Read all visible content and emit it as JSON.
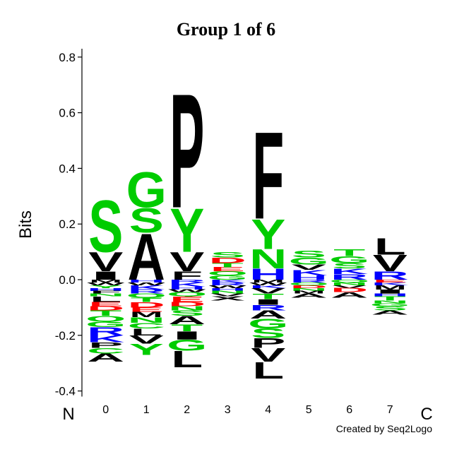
{
  "chart_data": {
    "type": "sequence-logo",
    "title": "Group 1 of 6",
    "ylabel": "Bits",
    "ylim": [
      -0.42,
      0.83
    ],
    "yticks": [
      -0.4,
      -0.2,
      0.0,
      0.2,
      0.4,
      0.6,
      0.8
    ],
    "ytick_labels": [
      "-0.4",
      "-0.2",
      "0.0",
      "0.2",
      "0.4",
      "0.6",
      "0.8"
    ],
    "positions": [
      "0",
      "1",
      "2",
      "3",
      "4",
      "5",
      "6",
      "7"
    ],
    "n_terminus_label": "N",
    "c_terminus_label": "C",
    "credit": "Created by Seq2Logo",
    "colors": {
      "polar": "#00cc00",
      "hydrophobic": "#000000",
      "basic": "#0000ff",
      "acidic": "#ff0000"
    },
    "letter_colors": {
      "A": "#000000",
      "C": "#00cc00",
      "D": "#ff0000",
      "E": "#ff0000",
      "F": "#000000",
      "G": "#00cc00",
      "H": "#0000ff",
      "I": "#000000",
      "K": "#0000ff",
      "L": "#000000",
      "M": "#000000",
      "N": "#00cc00",
      "P": "#000000",
      "Q": "#00cc00",
      "R": "#0000ff",
      "S": "#00cc00",
      "T": "#00cc00",
      "V": "#000000",
      "W": "#000000",
      "Y": "#00cc00"
    },
    "columns": [
      {
        "position": "0",
        "positive": [
          [
            "I",
            0.03
          ],
          [
            "V",
            0.07
          ],
          [
            "S",
            0.19
          ]
        ],
        "negative": [
          [
            "M",
            0.01
          ],
          [
            "W",
            0.01
          ],
          [
            "Y",
            0.01
          ],
          [
            "H",
            0.01
          ],
          [
            "F",
            0.01
          ],
          [
            "N",
            0.01
          ],
          [
            "L",
            0.02
          ],
          [
            "E",
            0.015
          ],
          [
            "D",
            0.015
          ],
          [
            "T",
            0.02
          ],
          [
            "Q",
            0.02
          ],
          [
            "G",
            0.02
          ],
          [
            "R",
            0.03
          ],
          [
            "K",
            0.025
          ],
          [
            "P",
            0.02
          ],
          [
            "C",
            0.02
          ],
          [
            "A",
            0.03
          ]
        ]
      },
      {
        "position": "1",
        "positive": [
          [
            "A",
            0.17
          ],
          [
            "S",
            0.09
          ],
          [
            "G",
            0.13
          ]
        ],
        "negative": [
          [
            "H",
            0.01
          ],
          [
            "W",
            0.01
          ],
          [
            "K",
            0.015
          ],
          [
            "R",
            0.015
          ],
          [
            "Q",
            0.015
          ],
          [
            "T",
            0.015
          ],
          [
            "D",
            0.02
          ],
          [
            "E",
            0.015
          ],
          [
            "M",
            0.02
          ],
          [
            "N",
            0.02
          ],
          [
            "C",
            0.02
          ],
          [
            "L",
            0.025
          ],
          [
            "V",
            0.03
          ],
          [
            "Y",
            0.04
          ]
        ]
      },
      {
        "position": "2",
        "positive": [
          [
            "F",
            0.03
          ],
          [
            "V",
            0.07
          ],
          [
            "Y",
            0.16
          ],
          [
            "P",
            0.42
          ]
        ],
        "negative": [
          [
            "R",
            0.01
          ],
          [
            "K",
            0.015
          ],
          [
            "H",
            0.01
          ],
          [
            "W",
            0.01
          ],
          [
            "Q",
            0.015
          ],
          [
            "E",
            0.02
          ],
          [
            "D",
            0.015
          ],
          [
            "N",
            0.015
          ],
          [
            "S",
            0.02
          ],
          [
            "A",
            0.03
          ],
          [
            "T",
            0.025
          ],
          [
            "I",
            0.03
          ],
          [
            "G",
            0.04
          ],
          [
            "L",
            0.06
          ]
        ]
      },
      {
        "position": "3",
        "positive": [
          [
            "G",
            0.015
          ],
          [
            "Q",
            0.015
          ],
          [
            "E",
            0.015
          ],
          [
            "T",
            0.015
          ],
          [
            "D",
            0.02
          ],
          [
            "S",
            0.02
          ]
        ],
        "negative": [
          [
            "K",
            0.01
          ],
          [
            "R",
            0.01
          ],
          [
            "W",
            0.01
          ],
          [
            "H",
            0.01
          ],
          [
            "N",
            0.01
          ],
          [
            "V",
            0.01
          ],
          [
            "X",
            0.015
          ]
        ]
      },
      {
        "position": "4",
        "positive": [
          [
            "H",
            0.04
          ],
          [
            "N",
            0.07
          ],
          [
            "Y",
            0.11
          ],
          [
            "F",
            0.32
          ]
        ],
        "negative": [
          [
            "M",
            0.01
          ],
          [
            "W",
            0.01
          ],
          [
            "K",
            0.01
          ],
          [
            "V",
            0.02
          ],
          [
            "T",
            0.02
          ],
          [
            "I",
            0.02
          ],
          [
            "R",
            0.02
          ],
          [
            "A",
            0.03
          ],
          [
            "G",
            0.035
          ],
          [
            "S",
            0.035
          ],
          [
            "P",
            0.035
          ],
          [
            "V",
            0.05
          ],
          [
            "L",
            0.06
          ]
        ]
      },
      {
        "position": "5",
        "positive": [
          [
            "H",
            0.015
          ],
          [
            "K",
            0.02
          ],
          [
            "V",
            0.02
          ],
          [
            "G",
            0.025
          ],
          [
            "S",
            0.025
          ]
        ],
        "negative": [
          [
            "R",
            0.01
          ],
          [
            "Q",
            0.01
          ],
          [
            "D",
            0.01
          ],
          [
            "N",
            0.01
          ],
          [
            "M",
            0.01
          ],
          [
            "A",
            0.015
          ]
        ]
      },
      {
        "position": "6",
        "positive": [
          [
            "R",
            0.02
          ],
          [
            "K",
            0.02
          ],
          [
            "S",
            0.02
          ],
          [
            "G",
            0.025
          ],
          [
            "T",
            0.025
          ]
        ],
        "negative": [
          [
            "Q",
            0.01
          ],
          [
            "N",
            0.01
          ],
          [
            "V",
            0.01
          ],
          [
            "D",
            0.015
          ],
          [
            "A",
            0.02
          ]
        ]
      },
      {
        "position": "7",
        "positive": [
          [
            "R",
            0.03
          ],
          [
            "V",
            0.06
          ],
          [
            "L",
            0.06
          ]
        ],
        "negative": [
          [
            "E",
            0.01
          ],
          [
            "K",
            0.01
          ],
          [
            "M",
            0.015
          ],
          [
            "I",
            0.015
          ],
          [
            "H",
            0.01
          ],
          [
            "T",
            0.015
          ],
          [
            "N",
            0.01
          ],
          [
            "G",
            0.01
          ],
          [
            "S",
            0.015
          ],
          [
            "A",
            0.015
          ]
        ]
      }
    ]
  }
}
